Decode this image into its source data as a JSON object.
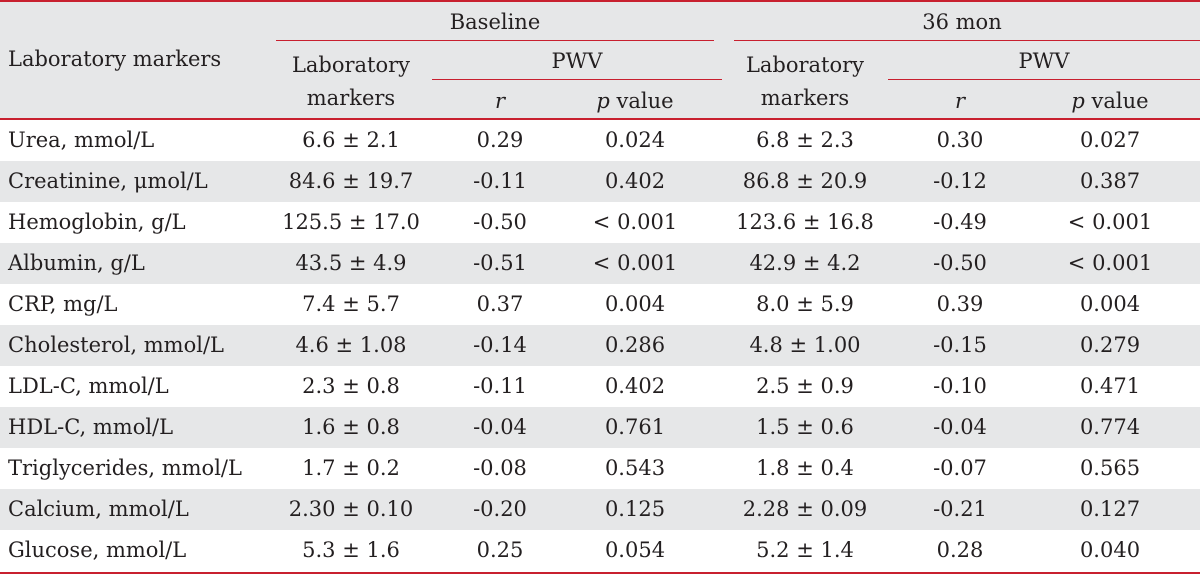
{
  "table": {
    "header": {
      "row_label": "Laboratory markers",
      "baseline": "Baseline",
      "followup": "36 mon",
      "lab_markers_line1": "Laboratory",
      "lab_markers_line2": "markers",
      "pwv": "PWV",
      "r": "r",
      "p": "p",
      "value": "value"
    },
    "rows": [
      {
        "marker": "Urea, mmol/L",
        "baseline_value": "6.6 ± 2.1",
        "baseline_r": "0.29",
        "baseline_p": "0.024",
        "followup_value": "6.8 ± 2.3",
        "followup_r": "0.30",
        "followup_p": "0.027"
      },
      {
        "marker": "Creatinine, μmol/L",
        "baseline_value": "84.6 ± 19.7",
        "baseline_r": "-0.11",
        "baseline_p": "0.402",
        "followup_value": "86.8 ± 20.9",
        "followup_r": "-0.12",
        "followup_p": "0.387"
      },
      {
        "marker": "Hemoglobin, g/L",
        "baseline_value": "125.5 ± 17.0",
        "baseline_r": "-0.50",
        "baseline_p": "< 0.001",
        "followup_value": "123.6 ± 16.8",
        "followup_r": "-0.49",
        "followup_p": "< 0.001"
      },
      {
        "marker": "Albumin, g/L",
        "baseline_value": "43.5 ± 4.9",
        "baseline_r": "-0.51",
        "baseline_p": "< 0.001",
        "followup_value": "42.9 ± 4.2",
        "followup_r": "-0.50",
        "followup_p": "< 0.001"
      },
      {
        "marker": "CRP, mg/L",
        "baseline_value": "7.4 ± 5.7",
        "baseline_r": "0.37",
        "baseline_p": "0.004",
        "followup_value": "8.0 ± 5.9",
        "followup_r": "0.39",
        "followup_p": "0.004"
      },
      {
        "marker": "Cholesterol, mmol/L",
        "baseline_value": "4.6 ± 1.08",
        "baseline_r": "-0.14",
        "baseline_p": "0.286",
        "followup_value": "4.8 ± 1.00",
        "followup_r": "-0.15",
        "followup_p": "0.279"
      },
      {
        "marker": "LDL-C, mmol/L",
        "baseline_value": "2.3 ± 0.8",
        "baseline_r": "-0.11",
        "baseline_p": "0.402",
        "followup_value": "2.5 ± 0.9",
        "followup_r": "-0.10",
        "followup_p": "0.471"
      },
      {
        "marker": "HDL-C, mmol/L",
        "baseline_value": "1.6 ± 0.8",
        "baseline_r": "-0.04",
        "baseline_p": "0.761",
        "followup_value": "1.5 ± 0.6",
        "followup_r": "-0.04",
        "followup_p": "0.774"
      },
      {
        "marker": "Triglycerides, mmol/L",
        "baseline_value": "1.7 ± 0.2",
        "baseline_r": "-0.08",
        "baseline_p": "0.543",
        "followup_value": "1.8 ± 0.4",
        "followup_r": "-0.07",
        "followup_p": "0.565"
      },
      {
        "marker": "Calcium, mmol/L",
        "baseline_value": "2.30 ± 0.10",
        "baseline_r": "-0.20",
        "baseline_p": "0.125",
        "followup_value": "2.28 ± 0.09",
        "followup_r": "-0.21",
        "followup_p": "0.127"
      },
      {
        "marker": "Glucose, mmol/L",
        "baseline_value": "5.3 ± 1.6",
        "baseline_r": "0.25",
        "baseline_p": "0.054",
        "followup_value": "5.2 ± 1.4",
        "followup_r": "0.28",
        "followup_p": "0.040"
      }
    ]
  }
}
